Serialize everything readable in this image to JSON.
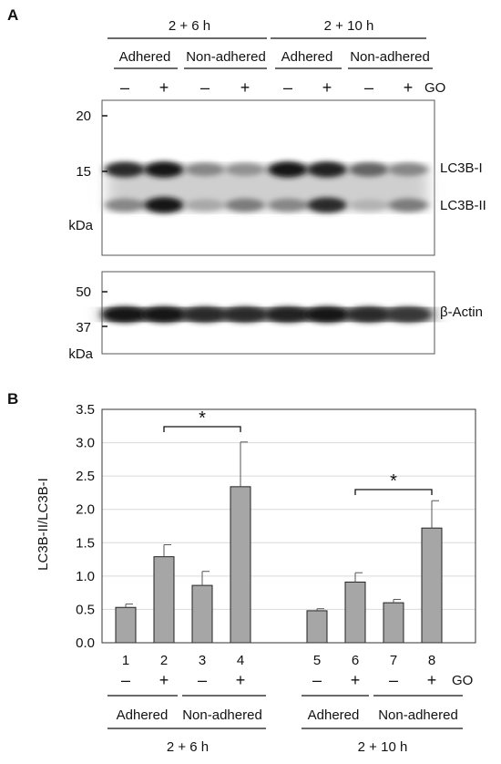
{
  "panel_a": {
    "label": "A",
    "time_groups": [
      "2 + 6 h",
      "2 + 10 h"
    ],
    "conditions": [
      "Adhered",
      "Non-adhered",
      "Adhered",
      "Non-adhered"
    ],
    "treatment_signs": [
      "–",
      "+",
      "–",
      "+",
      "–",
      "+",
      "–",
      "+"
    ],
    "treatment_label": "GO",
    "blot1": {
      "mw_markers": [
        "20",
        "15"
      ],
      "unit": "kDa",
      "bands": [
        "LC3B-I",
        "LC3B-II"
      ],
      "lc3b_i_intensity": [
        0.85,
        0.95,
        0.45,
        0.4,
        0.95,
        0.9,
        0.6,
        0.45
      ],
      "lc3b_ii_intensity": [
        0.45,
        0.95,
        0.3,
        0.5,
        0.45,
        0.85,
        0.25,
        0.5
      ]
    },
    "blot2": {
      "mw_markers": [
        "50",
        "37"
      ],
      "unit": "kDa",
      "band": "β-Actin",
      "intensity": [
        0.95,
        0.95,
        0.85,
        0.85,
        0.9,
        0.95,
        0.85,
        0.8
      ]
    }
  },
  "panel_b": {
    "label": "B",
    "chart_data": {
      "type": "bar",
      "categories": [
        "1",
        "2",
        "3",
        "4",
        "5",
        "6",
        "7",
        "8"
      ],
      "values": [
        0.53,
        1.29,
        0.86,
        2.34,
        0.48,
        0.91,
        0.6,
        1.72
      ],
      "errors": [
        0.05,
        0.18,
        0.21,
        0.67,
        0.03,
        0.14,
        0.05,
        0.41
      ],
      "ylabel": "LC3B-II/LC3B-I",
      "ylim": [
        0,
        3.5
      ],
      "yticks": [
        "0.0",
        "0.5",
        "1.0",
        "1.5",
        "2.0",
        "2.5",
        "3.0",
        "3.5"
      ],
      "grid": true,
      "treatment_signs": [
        "–",
        "+",
        "–",
        "+",
        "–",
        "+",
        "–",
        "+"
      ],
      "treatment_label": "GO",
      "conditions": [
        "Adhered",
        "Non-adhered",
        "Adhered",
        "Non-adhered"
      ],
      "time_groups": [
        "2 + 6 h",
        "2 + 10 h"
      ],
      "significance": [
        {
          "from": "2",
          "to": "4",
          "label": "*"
        },
        {
          "from": "6",
          "to": "8",
          "label": "*"
        }
      ],
      "bar_color": "#a6a6a6"
    }
  }
}
